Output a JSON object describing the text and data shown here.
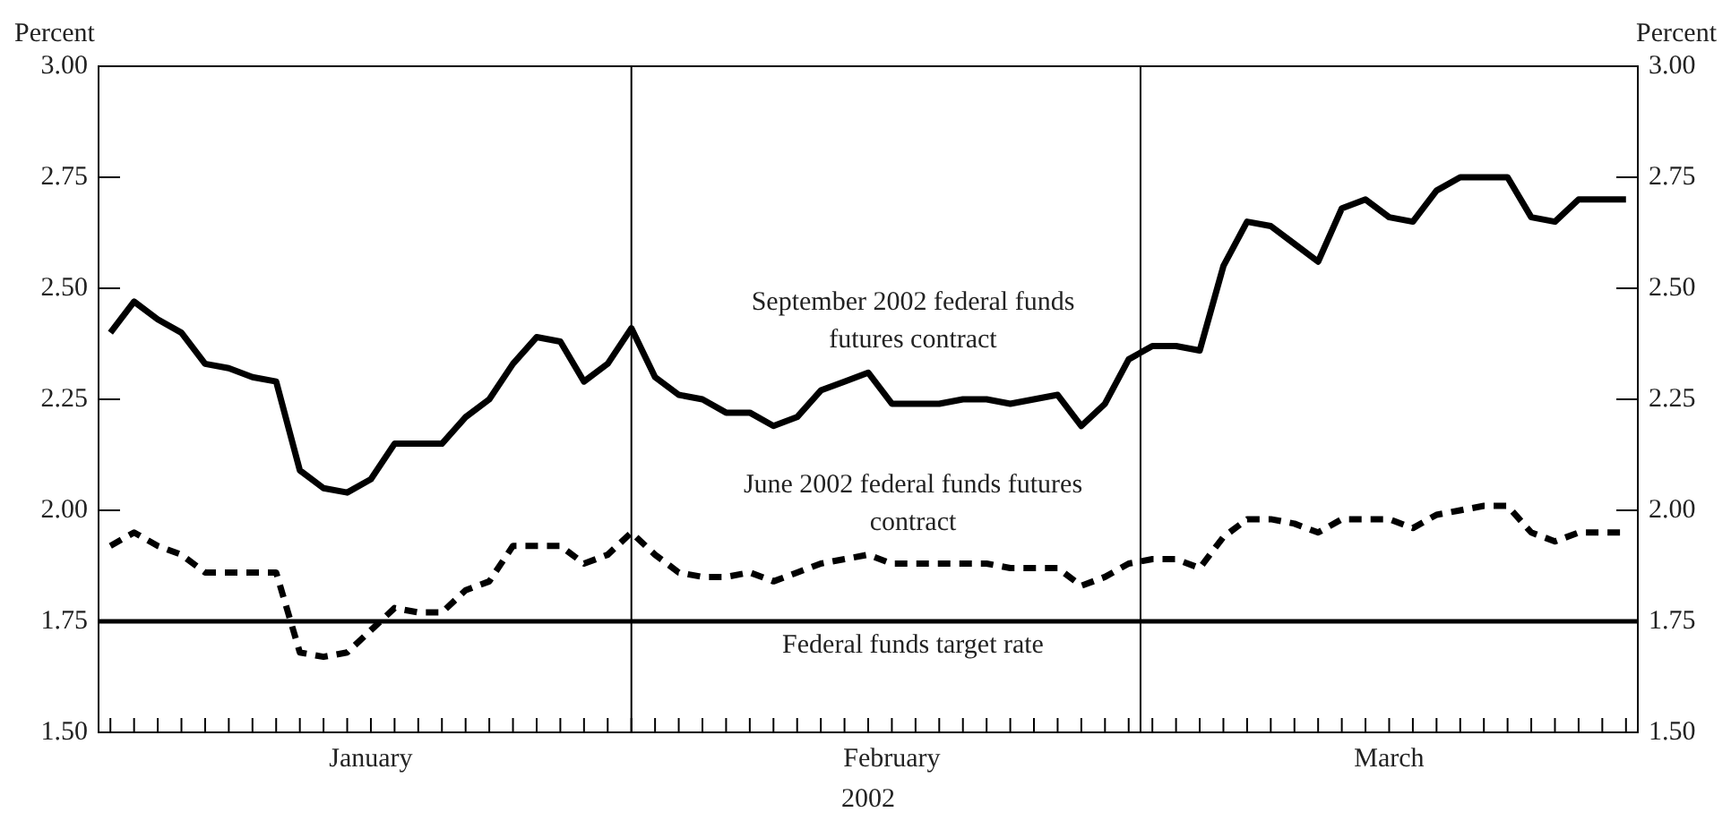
{
  "chart_data": {
    "type": "line",
    "xlabel": "2002",
    "ylabel": "Percent",
    "y2label": "Percent",
    "categories": [
      null,
      null,
      null,
      null,
      null,
      null,
      null,
      null,
      null,
      null,
      null,
      "January",
      null,
      null,
      null,
      null,
      null,
      null,
      null,
      null,
      null,
      null,
      null,
      null,
      null,
      null,
      null,
      null,
      null,
      null,
      null,
      null,
      null,
      "February",
      null,
      null,
      null,
      null,
      null,
      null,
      null,
      null,
      null,
      null,
      null,
      null,
      null,
      null,
      null,
      null,
      null,
      null,
      null,
      null,
      "March",
      null,
      null,
      null,
      null,
      null,
      null,
      null,
      null,
      null,
      null
    ],
    "series": [
      {
        "name": "September 2002 federal funds futures contract",
        "color": "#000000",
        "line_style": "solid",
        "values": [
          2.4,
          2.47,
          2.43,
          2.4,
          2.33,
          2.32,
          2.3,
          2.29,
          2.09,
          2.05,
          2.04,
          2.07,
          2.15,
          2.15,
          2.15,
          2.21,
          2.25,
          2.33,
          2.39,
          2.38,
          2.29,
          2.33,
          2.41,
          2.3,
          2.26,
          2.25,
          2.22,
          2.22,
          2.19,
          2.21,
          2.27,
          2.29,
          2.31,
          2.24,
          2.24,
          2.24,
          2.25,
          2.25,
          2.24,
          2.25,
          2.26,
          2.19,
          2.24,
          2.34,
          2.37,
          2.37,
          2.36,
          2.55,
          2.65,
          2.64,
          2.6,
          2.56,
          2.68,
          2.7,
          2.66,
          2.65,
          2.72,
          2.75,
          2.75,
          2.75,
          2.66,
          2.65,
          2.7,
          2.7,
          2.7
        ]
      },
      {
        "name": "June 2002 federal funds futures contract",
        "color": "#000000",
        "line_style": "dashed",
        "values": [
          1.92,
          1.95,
          1.92,
          1.9,
          1.86,
          1.86,
          1.86,
          1.86,
          1.68,
          1.67,
          1.68,
          1.73,
          1.78,
          1.77,
          1.77,
          1.82,
          1.84,
          1.92,
          1.92,
          1.92,
          1.88,
          1.9,
          1.95,
          1.9,
          1.86,
          1.85,
          1.85,
          1.86,
          1.84,
          1.86,
          1.88,
          1.89,
          1.9,
          1.88,
          1.88,
          1.88,
          1.88,
          1.88,
          1.87,
          1.87,
          1.87,
          1.83,
          1.85,
          1.88,
          1.89,
          1.89,
          1.87,
          1.94,
          1.98,
          1.98,
          1.97,
          1.95,
          1.98,
          1.98,
          1.98,
          1.96,
          1.99,
          2.0,
          2.01,
          2.01,
          1.95,
          1.93,
          1.95,
          1.95,
          1.95
        ]
      }
    ],
    "ylim": [
      1.5,
      3.0
    ],
    "yticks": [
      {
        "value": 1.5,
        "label": "1.50"
      },
      {
        "value": 1.75,
        "label": "1.75"
      },
      {
        "value": 2.0,
        "label": "2.00"
      },
      {
        "value": 2.25,
        "label": "2.25"
      },
      {
        "value": 2.5,
        "label": "2.50"
      },
      {
        "value": 2.75,
        "label": "2.75"
      },
      {
        "value": 3.0,
        "label": "3.00"
      }
    ],
    "y2lim": [
      1.5,
      3.0
    ],
    "y2ticks": [
      {
        "value": 1.5,
        "label": "1.50"
      },
      {
        "value": 1.75,
        "label": "1.75"
      },
      {
        "value": 2.0,
        "label": "2.00"
      },
      {
        "value": 2.25,
        "label": "2.25"
      },
      {
        "value": 2.5,
        "label": "2.50"
      },
      {
        "value": 2.75,
        "label": "2.75"
      },
      {
        "value": 3.0,
        "label": "3.00"
      }
    ],
    "ref_lines": [
      {
        "axis": "y",
        "value": 1.75,
        "label": "Federal funds target rate",
        "color": "#000000",
        "line_style": "solid"
      }
    ],
    "marker": "none",
    "grid": "x",
    "legend": false
  }
}
